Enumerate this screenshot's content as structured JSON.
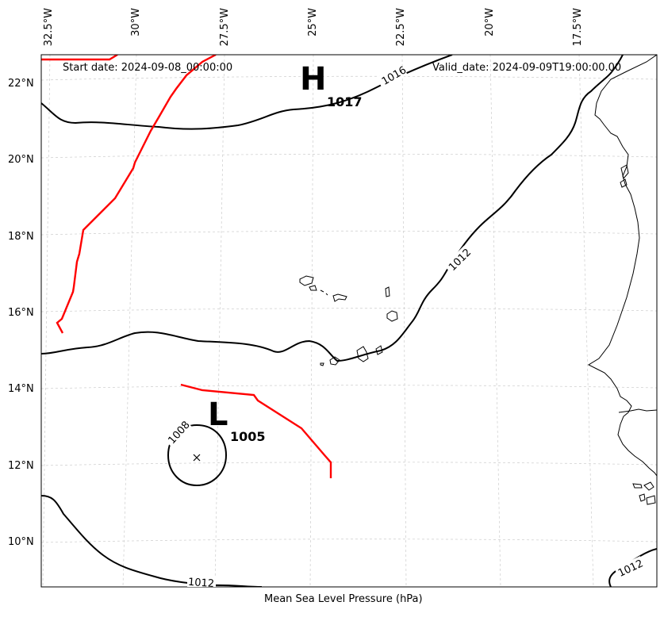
{
  "header": {
    "start_date": "Start date: 2024-09-08_00:00:00",
    "valid_date": "Valid_date: 2024-09-09T19:00:00.00"
  },
  "footer": {
    "title": "Mean Sea Level Pressure (hPa)"
  },
  "axes": {
    "lat_labels": [
      "22°N",
      "20°N",
      "18°N",
      "16°N",
      "14°N",
      "12°N",
      "10°N"
    ],
    "lon_labels": [
      "32.5°W",
      "30°W",
      "27.5°W",
      "25°W",
      "22.5°W",
      "20°W",
      "17.5°W"
    ]
  },
  "pressure_centers": [
    {
      "type": "H",
      "symbol": "H",
      "value": "1017"
    },
    {
      "type": "L",
      "symbol": "L",
      "value": "1005"
    }
  ],
  "contour_labels": [
    "1016",
    "1012",
    "1008",
    "1012",
    "1012"
  ],
  "colors": {
    "isobar": "#000000",
    "track": "#ff0000",
    "grid": "#cccccc",
    "coast": "#000000"
  }
}
